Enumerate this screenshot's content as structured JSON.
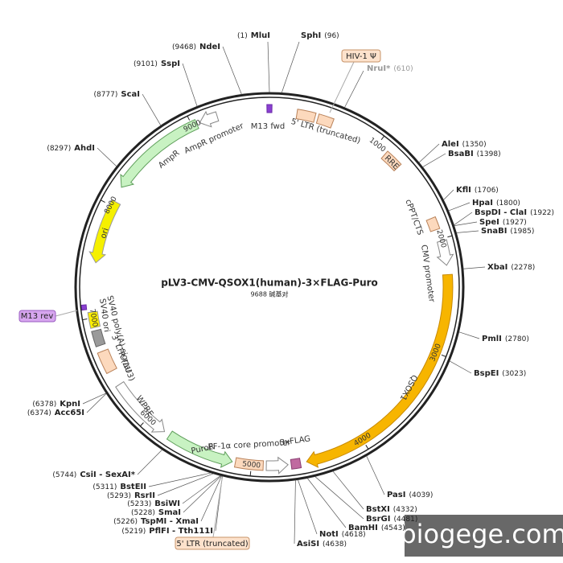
{
  "title": "pLV3-CMV-QSOX1(human)-3×FLAG-Puro",
  "length": "9688 碱基对",
  "sites": [
    {
      "name": "MluI",
      "position": "(1)"
    },
    {
      "name": "SphI",
      "position": "(96)"
    },
    {
      "name": "NruI*",
      "position": "(610)"
    },
    {
      "name": "AleI",
      "position": "(1350)"
    },
    {
      "name": "BsaBI",
      "position": "(1398)"
    },
    {
      "name": "KflI",
      "position": "(1706)"
    },
    {
      "name": "HpaI",
      "position": "(1800)"
    },
    {
      "name": "BspDI - ClaI",
      "position": "(1922)"
    },
    {
      "name": "SpeI",
      "position": "(1927)"
    },
    {
      "name": "SnaBI",
      "position": "(1985)"
    },
    {
      "name": "XbaI",
      "position": "(2278)"
    },
    {
      "name": "PmlI",
      "position": "(2780)"
    },
    {
      "name": "BspEI",
      "position": "(3023)"
    },
    {
      "name": "PasI",
      "position": "(4039)"
    },
    {
      "name": "BstXI",
      "position": "(4332)"
    },
    {
      "name": "BsrGI",
      "position": "(4481)"
    },
    {
      "name": "BamHI",
      "position": "(4543)"
    },
    {
      "name": "NotI",
      "position": "(4618)"
    },
    {
      "name": "AsiSI",
      "position": "(4638)"
    },
    {
      "name": "PflFI - Tth111I",
      "position": "(5219)"
    },
    {
      "name": "TspMI - XmaI",
      "position": "(5226)"
    },
    {
      "name": "SmaI",
      "position": "(5228)"
    },
    {
      "name": "BsiWI",
      "position": "(5233)"
    },
    {
      "name": "RsrII",
      "position": "(5293)"
    },
    {
      "name": "BstEII",
      "position": "(5311)"
    },
    {
      "name": "CsiI - SexAI*",
      "position": "(5744)"
    },
    {
      "name": "Acc65I",
      "position": "(6374)"
    },
    {
      "name": "KpnI",
      "position": "(6378)"
    },
    {
      "name": "AhdI",
      "position": "(8297)"
    },
    {
      "name": "ScaI",
      "position": "(8777)"
    },
    {
      "name": "SspI",
      "position": "(9101)"
    },
    {
      "name": "NdeI",
      "position": "(9468)"
    }
  ],
  "feature_labels": [
    "M13 fwd",
    "5' LTR (truncated)",
    "RRE",
    "cPPT/CTS",
    "CMV promoter",
    "QSOX1",
    "3xFLAG",
    "EF-1α core promoter",
    "PuroR",
    "WPRE",
    "3' LTR (ΔU3)",
    "SV40 ori",
    "SV40 poly(A) signal",
    "ori",
    "AmpR",
    "AmpR promoter"
  ],
  "callouts": [
    "HIV-1 Ψ",
    "5' LTR (truncated)",
    "M13 rev"
  ],
  "ruler": [
    "1000",
    "2000",
    "3000",
    "4000",
    "5000",
    "6000",
    "7000",
    "8000",
    "9000"
  ],
  "watermark": "biogege.com"
}
